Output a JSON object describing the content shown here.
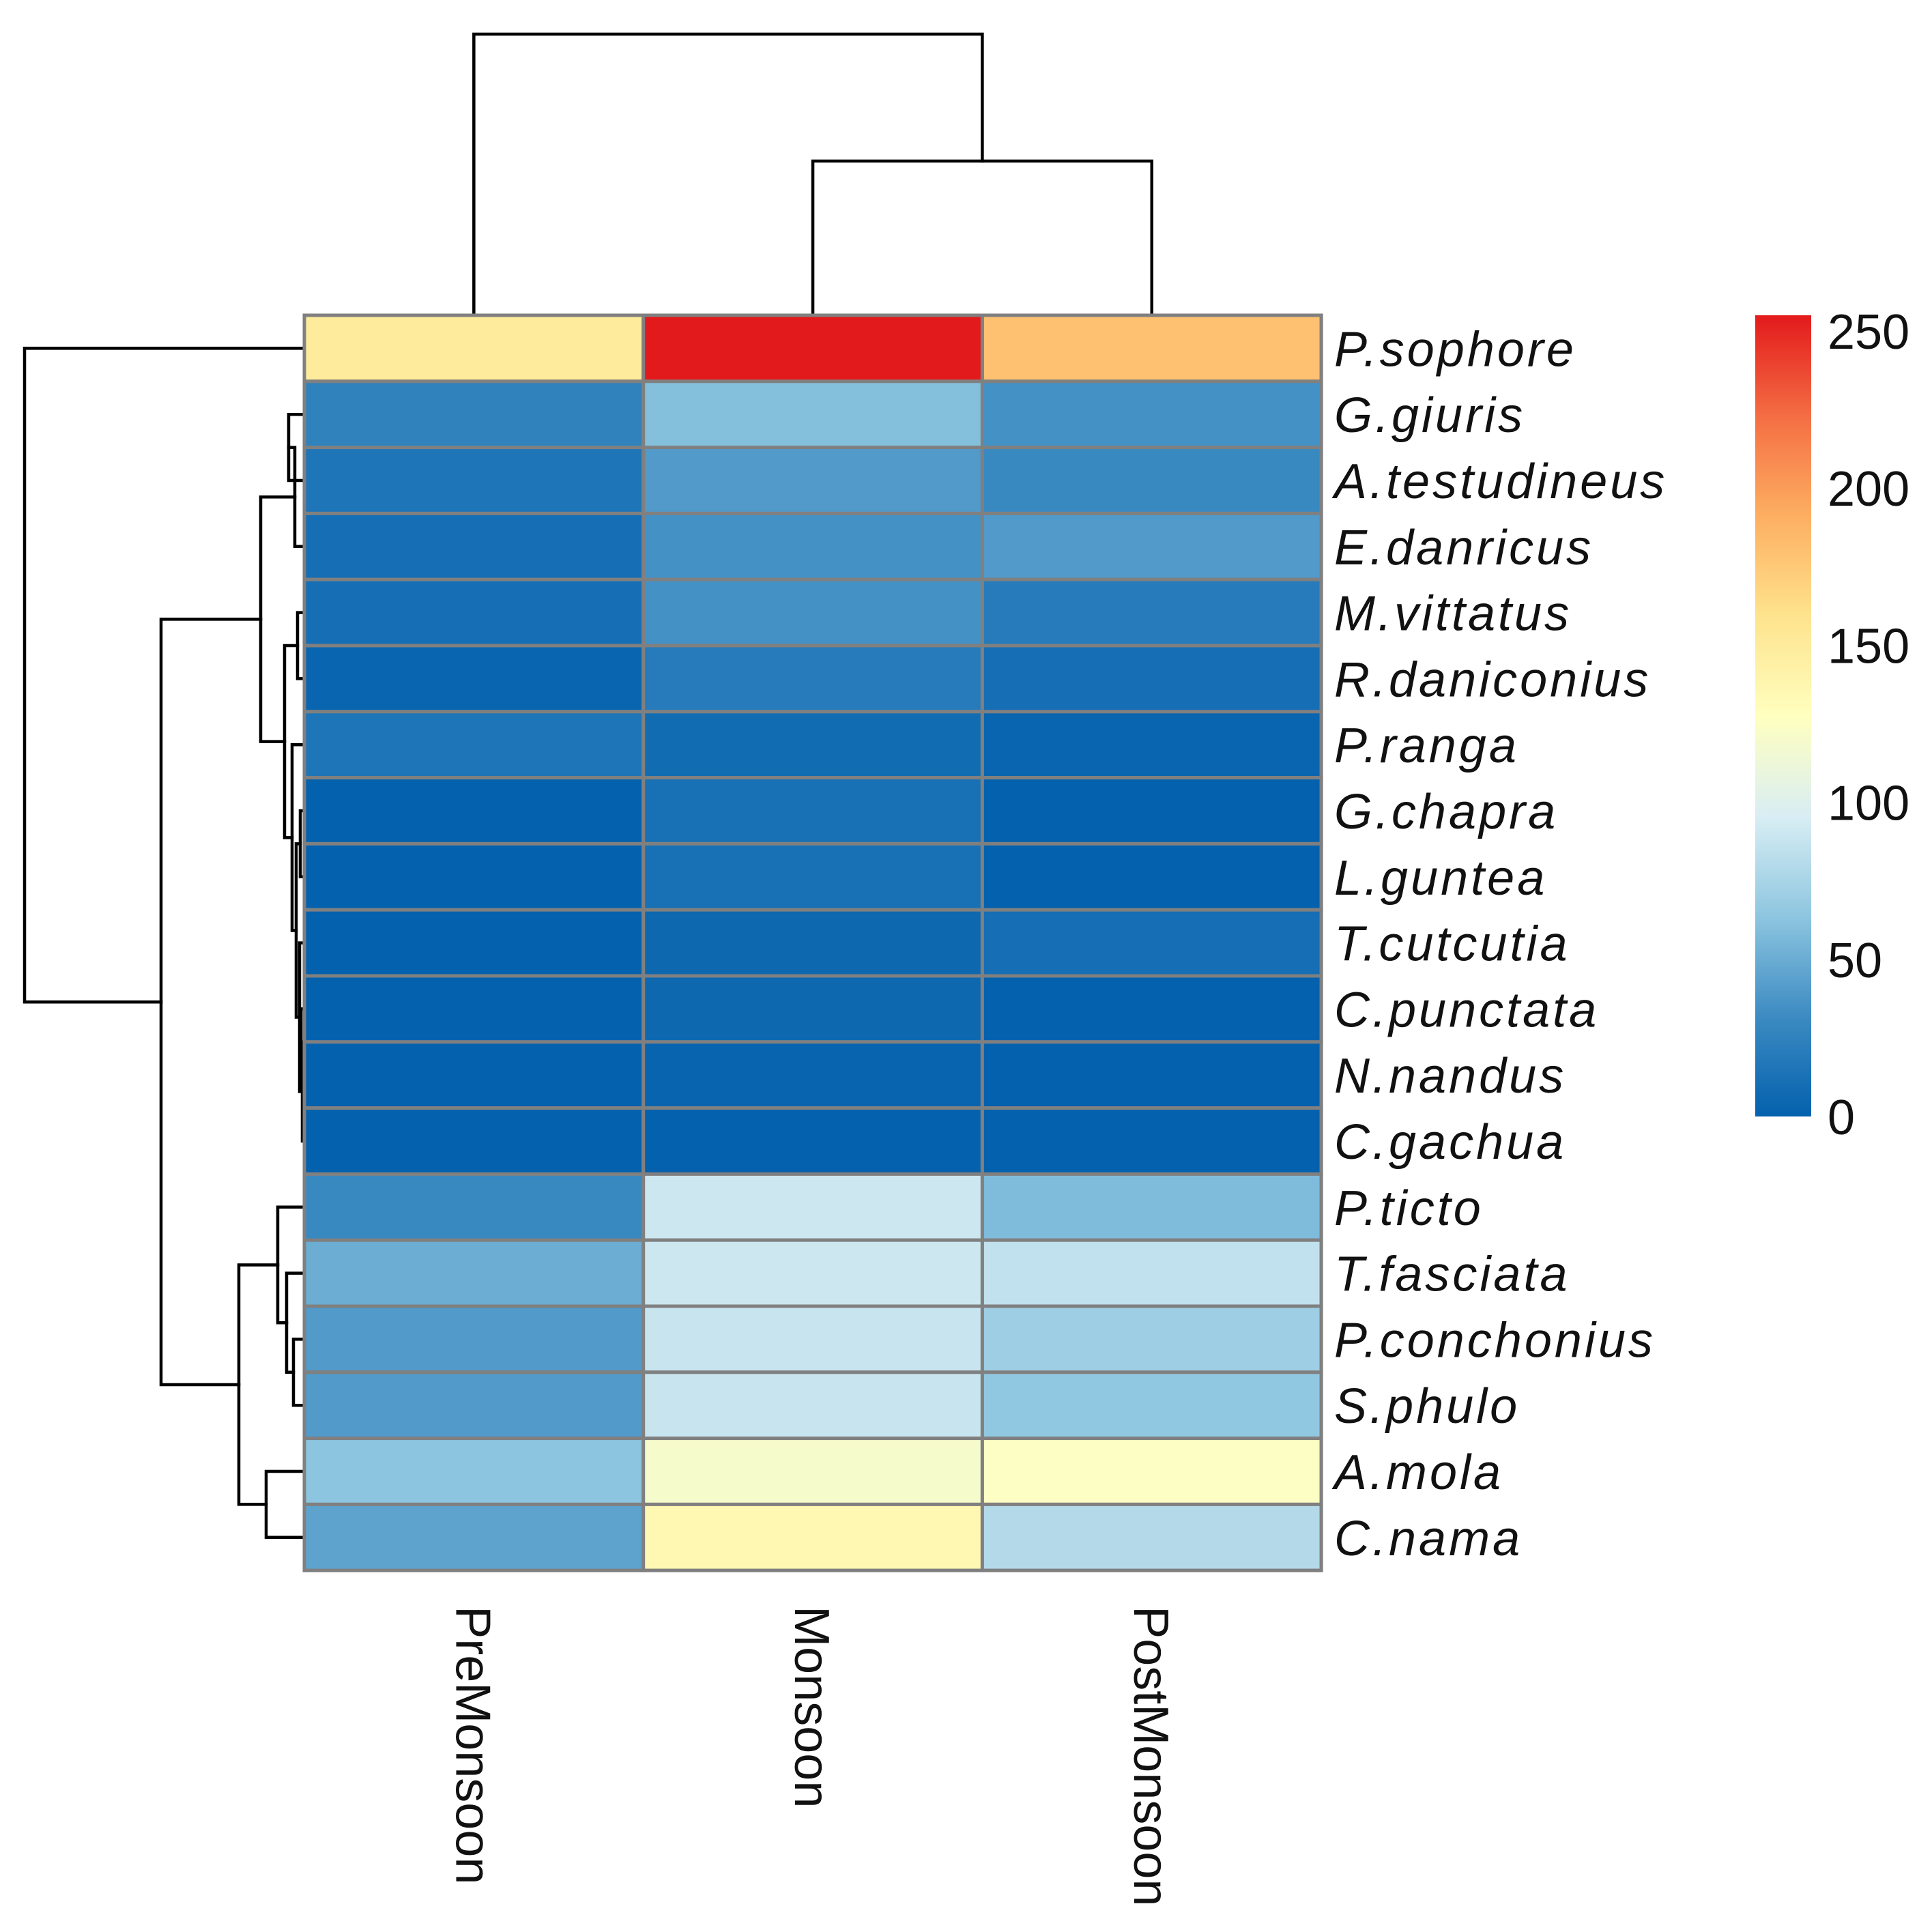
{
  "chart_data": {
    "type": "heatmap",
    "title": "",
    "columns": [
      "PreMonsoon",
      "Monsoon",
      "PostMonsoon"
    ],
    "rows": [
      "P.sophore",
      "G.giuris",
      "A.testudineus",
      "E.danricus",
      "M.vittatus",
      "R.daniconius",
      "P.ranga",
      "G.chapra",
      "L.guntea",
      "T.cutcutia",
      "C.punctata",
      "N.nandus",
      "C.gachua",
      "P.ticto",
      "T.fasciata",
      "P.conchonius",
      "S.phulo",
      "A.mola",
      "C.nama"
    ],
    "values": [
      [
        150,
        255,
        180
      ],
      [
        25,
        60,
        35
      ],
      [
        15,
        40,
        30
      ],
      [
        10,
        35,
        40
      ],
      [
        10,
        35,
        20
      ],
      [
        3,
        20,
        10
      ],
      [
        15,
        8,
        3
      ],
      [
        0,
        12,
        0
      ],
      [
        0,
        12,
        0
      ],
      [
        0,
        5,
        10
      ],
      [
        0,
        5,
        0
      ],
      [
        0,
        2,
        0
      ],
      [
        0,
        0,
        0
      ],
      [
        30,
        90,
        58
      ],
      [
        50,
        90,
        85
      ],
      [
        40,
        88,
        70
      ],
      [
        40,
        88,
        65
      ],
      [
        63,
        120,
        125
      ],
      [
        45,
        135,
        80
      ]
    ],
    "colorbar": {
      "min": 0,
      "max": 255,
      "ticks": [
        "0",
        "50",
        "100",
        "150",
        "200",
        "250"
      ],
      "tick_values": [
        0,
        50,
        100,
        150,
        200,
        250
      ],
      "colors": [
        "#0461AD",
        "#3C8BC2",
        "#8EC6E0",
        "#D9EEF4",
        "#FFFFBF",
        "#FEE38D",
        "#FDAE61",
        "#F46D43",
        "#E31A1C"
      ]
    },
    "column_dendrogram": "PreMonsoon | (Monsoon, PostMonsoon)",
    "row_dendrogram": "P.sophore | (cluster of 12 low-abundance species, cluster of 6 mid-abundance species)"
  }
}
